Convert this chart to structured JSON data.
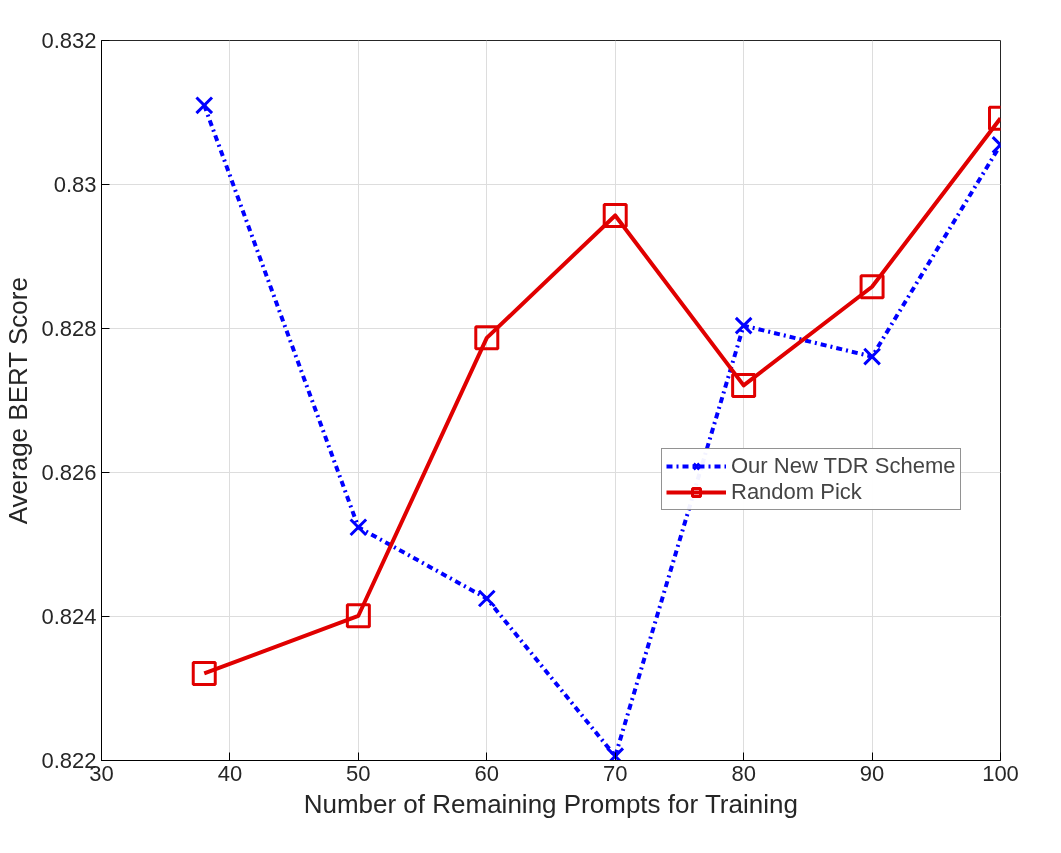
{
  "chart_data": {
    "type": "line",
    "xlabel": "Number of Remaining Prompts for Training",
    "ylabel": "Average BERT Score",
    "x": [
      38,
      50,
      60,
      70,
      80,
      90,
      100
    ],
    "series": [
      {
        "name": "Our New TDR Scheme",
        "color": "#0000ff",
        "marker": "cross",
        "line_style": "dashdot",
        "values": [
          0.8311,
          0.82524,
          0.82425,
          0.82206,
          0.82804,
          0.82761,
          0.83055
        ]
      },
      {
        "name": "Random Pick",
        "color": "#e00000",
        "marker": "square",
        "line_style": "solid",
        "values": [
          0.82321,
          0.82401,
          0.82787,
          0.82957,
          0.82721,
          0.82858,
          0.83092
        ]
      }
    ],
    "xlim": [
      30,
      100
    ],
    "xticks": [
      30,
      40,
      50,
      60,
      70,
      80,
      90,
      100
    ],
    "ylim": [
      0.822,
      0.832
    ],
    "yticks": [
      {
        "value": 0.822,
        "label": "0.822"
      },
      {
        "value": 0.824,
        "label": "0.824"
      },
      {
        "value": 0.826,
        "label": "0.826"
      },
      {
        "value": 0.828,
        "label": "0.828"
      },
      {
        "value": 0.83,
        "label": "0.83"
      },
      {
        "value": 0.832,
        "label": "0.832"
      }
    ],
    "grid": true,
    "legend": "right"
  }
}
